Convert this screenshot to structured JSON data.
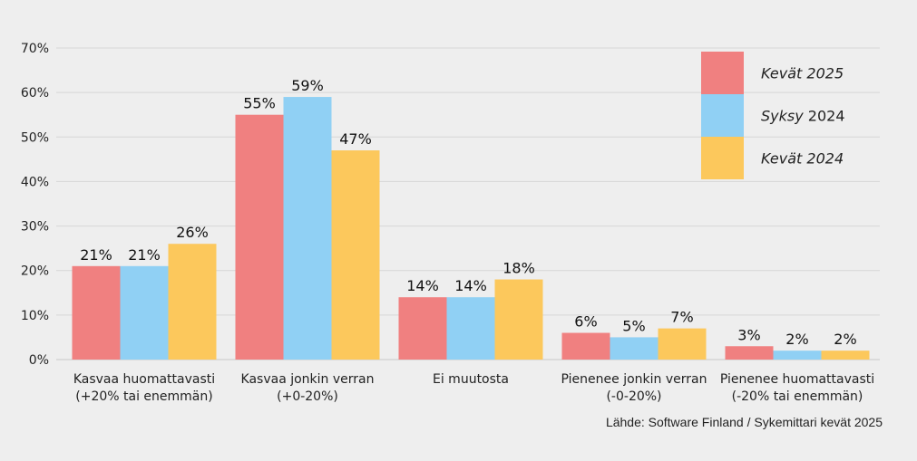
{
  "chart_data": {
    "type": "bar",
    "title": "",
    "xlabel": "",
    "ylabel": "",
    "ylim": [
      0,
      70
    ],
    "yticks": [
      "0%",
      "10%",
      "20%",
      "30%",
      "40%",
      "50%",
      "60%",
      "70%"
    ],
    "grid": true,
    "legend_position": "top-right",
    "categories": [
      [
        "Kasvaa huomattavasti",
        "(+20% tai enemmän)"
      ],
      [
        "Kasvaa jonkin verran",
        "(+0-20%)"
      ],
      [
        "Ei muutosta"
      ],
      [
        "Pienenee jonkin verran",
        "(-0-20%)"
      ],
      [
        "Pienenee huomattavasti",
        "(-20% tai enemmän)"
      ]
    ],
    "series": [
      {
        "name": "Kevät 2025",
        "color": "#f08080",
        "values": [
          21,
          55,
          14,
          6,
          3
        ],
        "labels": [
          "21%",
          "55%",
          "14%",
          "6%",
          "3%"
        ]
      },
      {
        "name": "Syksy 2024",
        "color": "#90d0f4",
        "values": [
          21,
          59,
          14,
          5,
          2
        ],
        "labels": [
          "21%",
          "59%",
          "14%",
          "5%",
          "2%"
        ]
      },
      {
        "name": "Kevät 2024",
        "color": "#fcc85c",
        "values": [
          26,
          47,
          18,
          7,
          2
        ],
        "labels": [
          "26%",
          "47%",
          "18%",
          "7%",
          "2%"
        ]
      }
    ],
    "legend": [
      {
        "name_main": "Kevät",
        "name_year": "2025",
        "style": "italic"
      },
      {
        "name_main": "Syksy",
        "name_year": "2024",
        "style": "mixed"
      },
      {
        "name_main": "Kevät",
        "name_year": "2024",
        "style": "italic"
      }
    ],
    "source": "Lähde: Software Finland / Sykemittari kevät 2025"
  }
}
